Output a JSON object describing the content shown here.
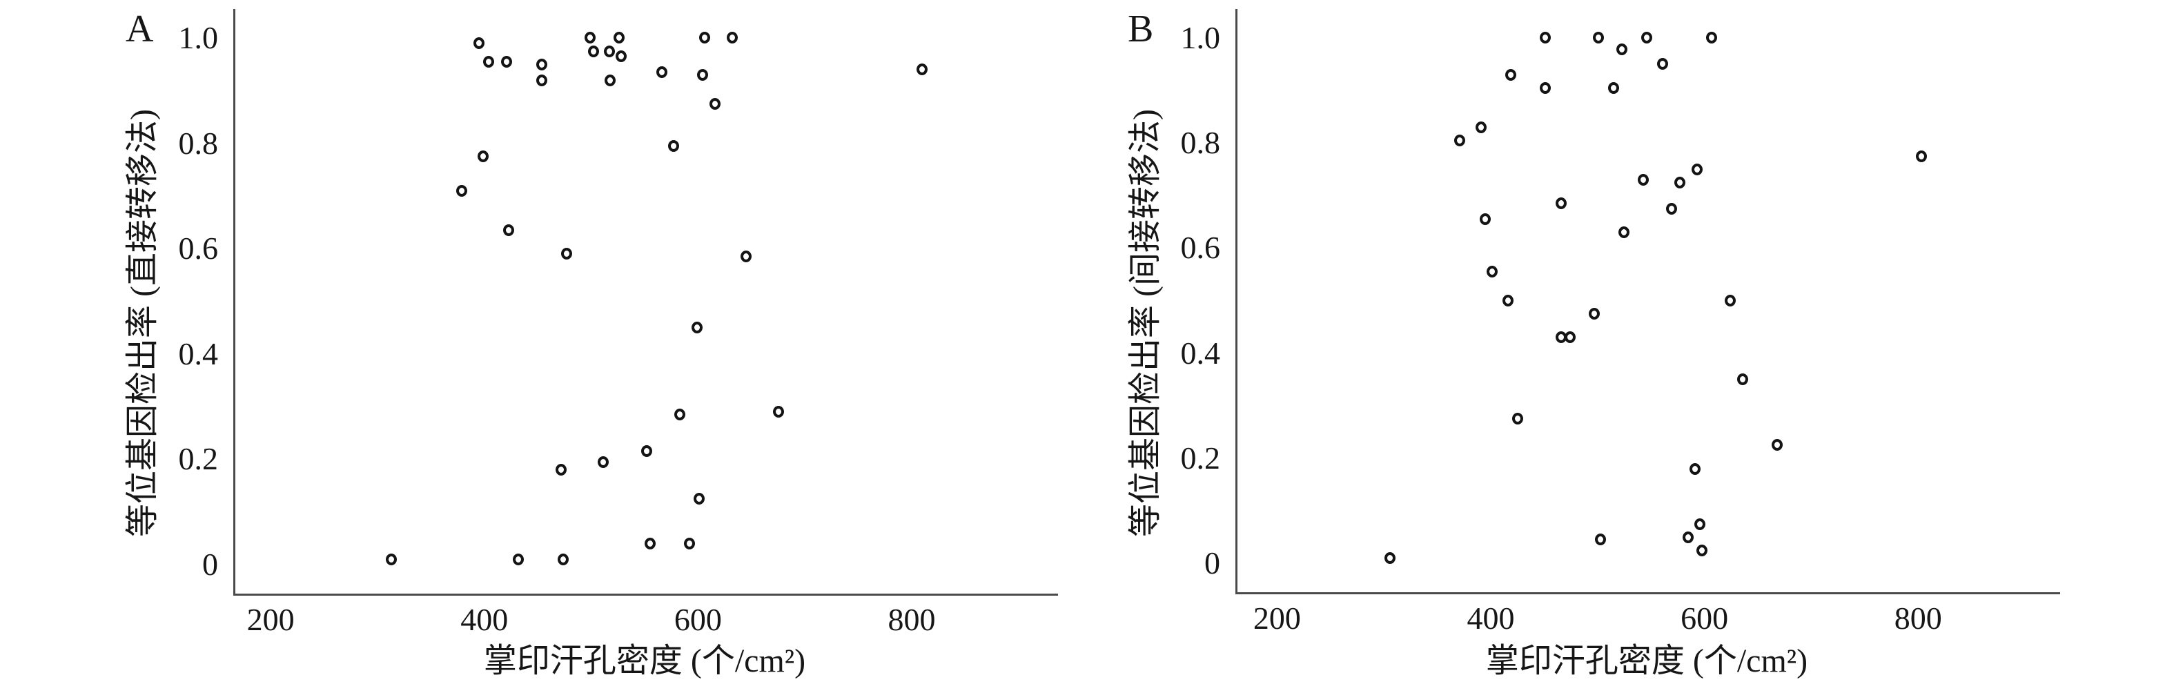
{
  "figure": {
    "panels": [
      {
        "label": "A",
        "y_title": "等位基因检出率 (直接转移法)",
        "x_title": "掌印汗孔密度 (个/cm²)"
      },
      {
        "label": "B",
        "y_title": "等位基因检出率 (间接转移法)",
        "x_title": "掌印汗孔密度 (个/cm²)"
      }
    ],
    "marker_color": "#141414",
    "axis_color": "#4a4a4a"
  },
  "chart_data": [
    {
      "type": "scatter",
      "title": "A",
      "xlabel": "掌印汗孔密度 (个/cm²)",
      "ylabel": "等位基因检出率 (直接转移法)",
      "x_ticks": [
        200,
        400,
        600,
        800
      ],
      "y_ticks": [
        0,
        0.2,
        0.4,
        0.6,
        0.8,
        1.0
      ],
      "xlim": [
        165,
        935
      ],
      "ylim": [
        -0.055,
        1.055
      ],
      "grid": false,
      "legend": "none",
      "marker": "open-circle",
      "points": [
        [
          395,
          0.99
        ],
        [
          404,
          0.955
        ],
        [
          421,
          0.955
        ],
        [
          454,
          0.95
        ],
        [
          454,
          0.92
        ],
        [
          499,
          1.0
        ],
        [
          526,
          1.0
        ],
        [
          502,
          0.975
        ],
        [
          517,
          0.975
        ],
        [
          528,
          0.965
        ],
        [
          518,
          0.92
        ],
        [
          566,
          0.935
        ],
        [
          604,
          0.93
        ],
        [
          606,
          1.0
        ],
        [
          632,
          1.0
        ],
        [
          616,
          0.875
        ],
        [
          577,
          0.795
        ],
        [
          810,
          0.94
        ],
        [
          399,
          0.775
        ],
        [
          379,
          0.71
        ],
        [
          423,
          0.635
        ],
        [
          477,
          0.59
        ],
        [
          645,
          0.585
        ],
        [
          599,
          0.45
        ],
        [
          583,
          0.285
        ],
        [
          675,
          0.29
        ],
        [
          472,
          0.18
        ],
        [
          511,
          0.195
        ],
        [
          552,
          0.215
        ],
        [
          601,
          0.125
        ],
        [
          592,
          0.04
        ],
        [
          555,
          0.04
        ],
        [
          313,
          0.01
        ],
        [
          432,
          0.01
        ],
        [
          474,
          0.01
        ]
      ]
    },
    {
      "type": "scatter",
      "title": "B",
      "xlabel": "掌印汗孔密度 (个/cm²)",
      "ylabel": "等位基因检出率 (间接转移法)",
      "x_ticks": [
        200,
        400,
        600,
        800
      ],
      "y_ticks": [
        0,
        0.2,
        0.4,
        0.6,
        0.8,
        1.0
      ],
      "xlim": [
        161,
        931
      ],
      "ylim": [
        -0.055,
        1.055
      ],
      "grid": false,
      "legend": "none",
      "marker": "open-circle",
      "points": [
        [
          451,
          1.0
        ],
        [
          501,
          1.0
        ],
        [
          546,
          1.0
        ],
        [
          607,
          1.0
        ],
        [
          523,
          0.978
        ],
        [
          561,
          0.95
        ],
        [
          419,
          0.93
        ],
        [
          451,
          0.905
        ],
        [
          515,
          0.905
        ],
        [
          391,
          0.83
        ],
        [
          371,
          0.805
        ],
        [
          803,
          0.775
        ],
        [
          593,
          0.75
        ],
        [
          577,
          0.725
        ],
        [
          543,
          0.73
        ],
        [
          466,
          0.685
        ],
        [
          569,
          0.675
        ],
        [
          395,
          0.655
        ],
        [
          525,
          0.63
        ],
        [
          401,
          0.555
        ],
        [
          416,
          0.5
        ],
        [
          624,
          0.5
        ],
        [
          497,
          0.475
        ],
        [
          466,
          0.43
        ],
        [
          474,
          0.43
        ],
        [
          636,
          0.35
        ],
        [
          425,
          0.275
        ],
        [
          668,
          0.225
        ],
        [
          591,
          0.18
        ],
        [
          596,
          0.075
        ],
        [
          585,
          0.05
        ],
        [
          598,
          0.025
        ],
        [
          503,
          0.045
        ],
        [
          306,
          0.01
        ]
      ]
    }
  ]
}
